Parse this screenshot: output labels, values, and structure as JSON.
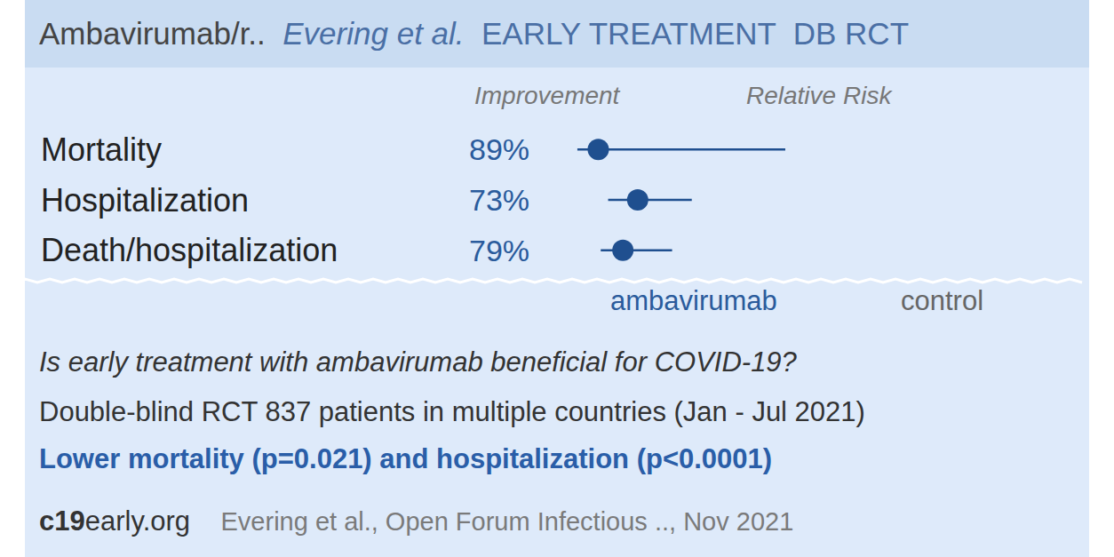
{
  "header": {
    "drug": "Ambavirumab/r..",
    "authors": "Evering et al.",
    "tags": "EARLY TREATMENT  DB RCT"
  },
  "chart_data": {
    "type": "forest",
    "categories": [
      "Mortality",
      "Hospitalization",
      "Death/hospitalization"
    ],
    "values": [
      0.11,
      0.27,
      0.21
    ],
    "ci_low": [
      0.025,
      0.15,
      0.12
    ],
    "ci_high": [
      0.87,
      0.49,
      0.41
    ],
    "improvement": [
      "89%",
      "73%",
      "79%"
    ],
    "column_titles": [
      "Improvement",
      "Relative Risk"
    ],
    "side_labels": [
      "ambavirumab",
      "control"
    ],
    "orientation": "horizontal",
    "xlim": [
      0,
      1
    ],
    "xticks": [
      0,
      1
    ],
    "grid": true,
    "tick_labels": false,
    "color": "#1f4f8f",
    "marker": "circle"
  },
  "summary": {
    "question": "Is early treatment with ambavirumab beneficial for COVID-19?",
    "design": "Double-blind RCT 837 patients in multiple countries (Jan - Jul 2021)",
    "result": "Lower mortality (p=0.021) and hospitalization (p<0.0001)"
  },
  "footer": {
    "site": "c19early.org",
    "citation": "Evering et al., Open Forum Infectious .., Nov 2021"
  }
}
